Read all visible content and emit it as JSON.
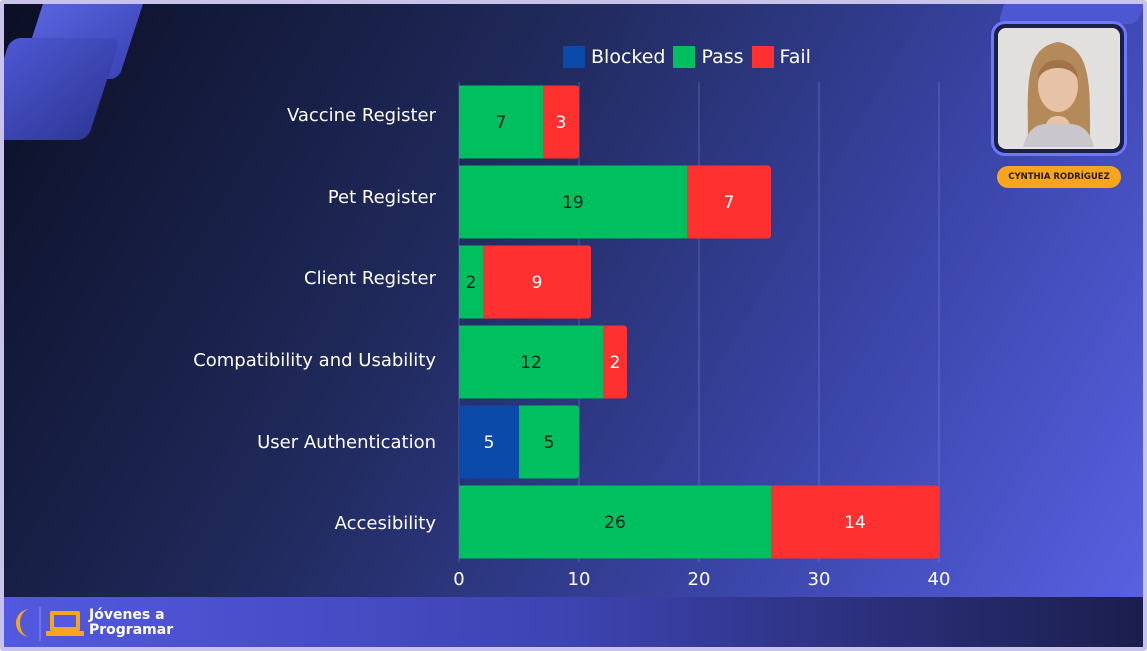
{
  "presenter": {
    "name": "CYNTHIA RODRÍGUEZ",
    "icon": "person-photo"
  },
  "brand": {
    "line1": "Jóvenes a",
    "line2": "Programar",
    "icon": "laptop-icon",
    "accent": "#f7a51c"
  },
  "chart_data": {
    "type": "bar",
    "orientation": "horizontal",
    "stacked": true,
    "categories": [
      "Vaccine Register",
      "Pet Register",
      "Client Register",
      "Compatibility and Usability",
      "User Authentication",
      "Accesibility"
    ],
    "series": [
      {
        "name": "Blocked",
        "color": "#0b4aa8",
        "values": [
          0,
          0,
          0,
          0,
          5,
          0
        ]
      },
      {
        "name": "Pass",
        "color": "#00bf5f",
        "values": [
          7,
          19,
          2,
          12,
          5,
          26
        ]
      },
      {
        "name": "Fail",
        "color": "#ff3030",
        "values": [
          3,
          7,
          9,
          2,
          0,
          14
        ]
      }
    ],
    "xticks": [
      "0",
      "10",
      "20",
      "30",
      "40"
    ],
    "xlim": [
      0,
      40
    ],
    "grid": true,
    "legend_position": "top"
  }
}
